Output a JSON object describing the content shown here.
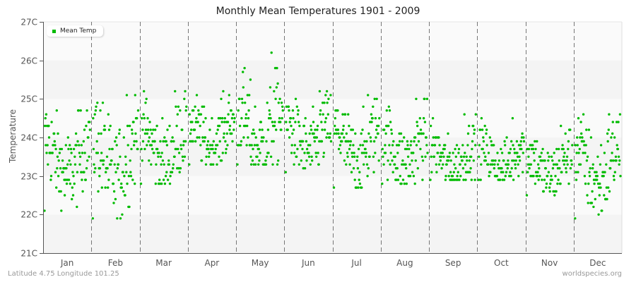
{
  "title": "Monthly Mean Temperatures 1901 - 2009",
  "ylabel": "Temperature",
  "footer": {
    "left": "Latitude 4.75 Longitude 101.25",
    "right": "worldspecies.org"
  },
  "legend": {
    "label": "Mean Temp",
    "color": "#00bb00"
  },
  "colors": {
    "point": "#00bb00",
    "band_light": "#f4f4f4",
    "band_lighter": "#fafafa",
    "axis": "#555555",
    "divider": "#777777"
  },
  "chart_data": {
    "type": "scatter",
    "title": "Monthly Mean Temperatures 1901 - 2009",
    "xlabel": "",
    "ylabel": "Temperature",
    "ylim": [
      21,
      27
    ],
    "yticks": [
      "21C",
      "22C",
      "23C",
      "24C",
      "25C",
      "26C",
      "27C"
    ],
    "categories": [
      "Jan",
      "Feb",
      "Mar",
      "Apr",
      "May",
      "Jun",
      "Jul",
      "Aug",
      "Sep",
      "Oct",
      "Nov",
      "Dec"
    ],
    "legend": [
      "Mean Temp"
    ],
    "legend_position": "top-left",
    "grid": "alternating horizontal bands, dashed vertical month dividers",
    "years": [
      1901,
      2009
    ],
    "points_per_month": 109,
    "series": [
      {
        "name": "Mean Temp",
        "monthly_summary": [
          {
            "month": "Jan",
            "min": 22.1,
            "max": 24.7,
            "mean": 23.5
          },
          {
            "month": "Feb",
            "min": 21.9,
            "max": 25.1,
            "mean": 23.5
          },
          {
            "month": "Mar",
            "min": 22.8,
            "max": 25.2,
            "mean": 23.8
          },
          {
            "month": "Apr",
            "min": 23.3,
            "max": 25.2,
            "mean": 24.1
          },
          {
            "month": "May",
            "min": 23.3,
            "max": 26.2,
            "mean": 24.2
          },
          {
            "month": "Jun",
            "min": 23.1,
            "max": 25.2,
            "mean": 24.0
          },
          {
            "month": "Jul",
            "min": 22.7,
            "max": 25.1,
            "mean": 23.8
          },
          {
            "month": "Aug",
            "min": 22.8,
            "max": 25.0,
            "mean": 23.7
          },
          {
            "month": "Sep",
            "min": 22.9,
            "max": 24.6,
            "mean": 23.5
          },
          {
            "month": "Oct",
            "min": 22.9,
            "max": 24.5,
            "mean": 23.5
          },
          {
            "month": "Nov",
            "min": 22.5,
            "max": 24.3,
            "mean": 23.3
          },
          {
            "month": "Dec",
            "min": 21.9,
            "max": 24.6,
            "mean": 23.3
          }
        ]
      }
    ]
  }
}
